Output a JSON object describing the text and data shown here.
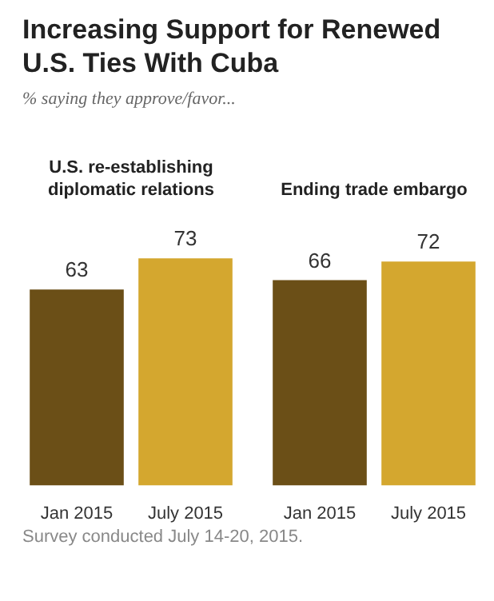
{
  "chart_data": [
    {
      "type": "other",
      "title": "Increasing Support for Renewed U.S. Ties With Cuba",
      "subtitle": "% saying they approve/favor...",
      "annotations": [
        "Survey conducted July 14-20, 2015."
      ]
    },
    {
      "type": "bar",
      "title": "U.S. re-establishing diplomatic relations",
      "categories": [
        "Jan 2015",
        "July 2015"
      ],
      "values": [
        63,
        73
      ],
      "colors": [
        "#6b4f17",
        "#d4a72f"
      ],
      "data_labels": true
    },
    {
      "type": "bar",
      "title": "Ending trade embargo",
      "categories": [
        "Jan 2015",
        "July 2015"
      ],
      "values": [
        66,
        72
      ],
      "colors": [
        "#6b4f17",
        "#d4a72f"
      ],
      "data_labels": true
    }
  ]
}
